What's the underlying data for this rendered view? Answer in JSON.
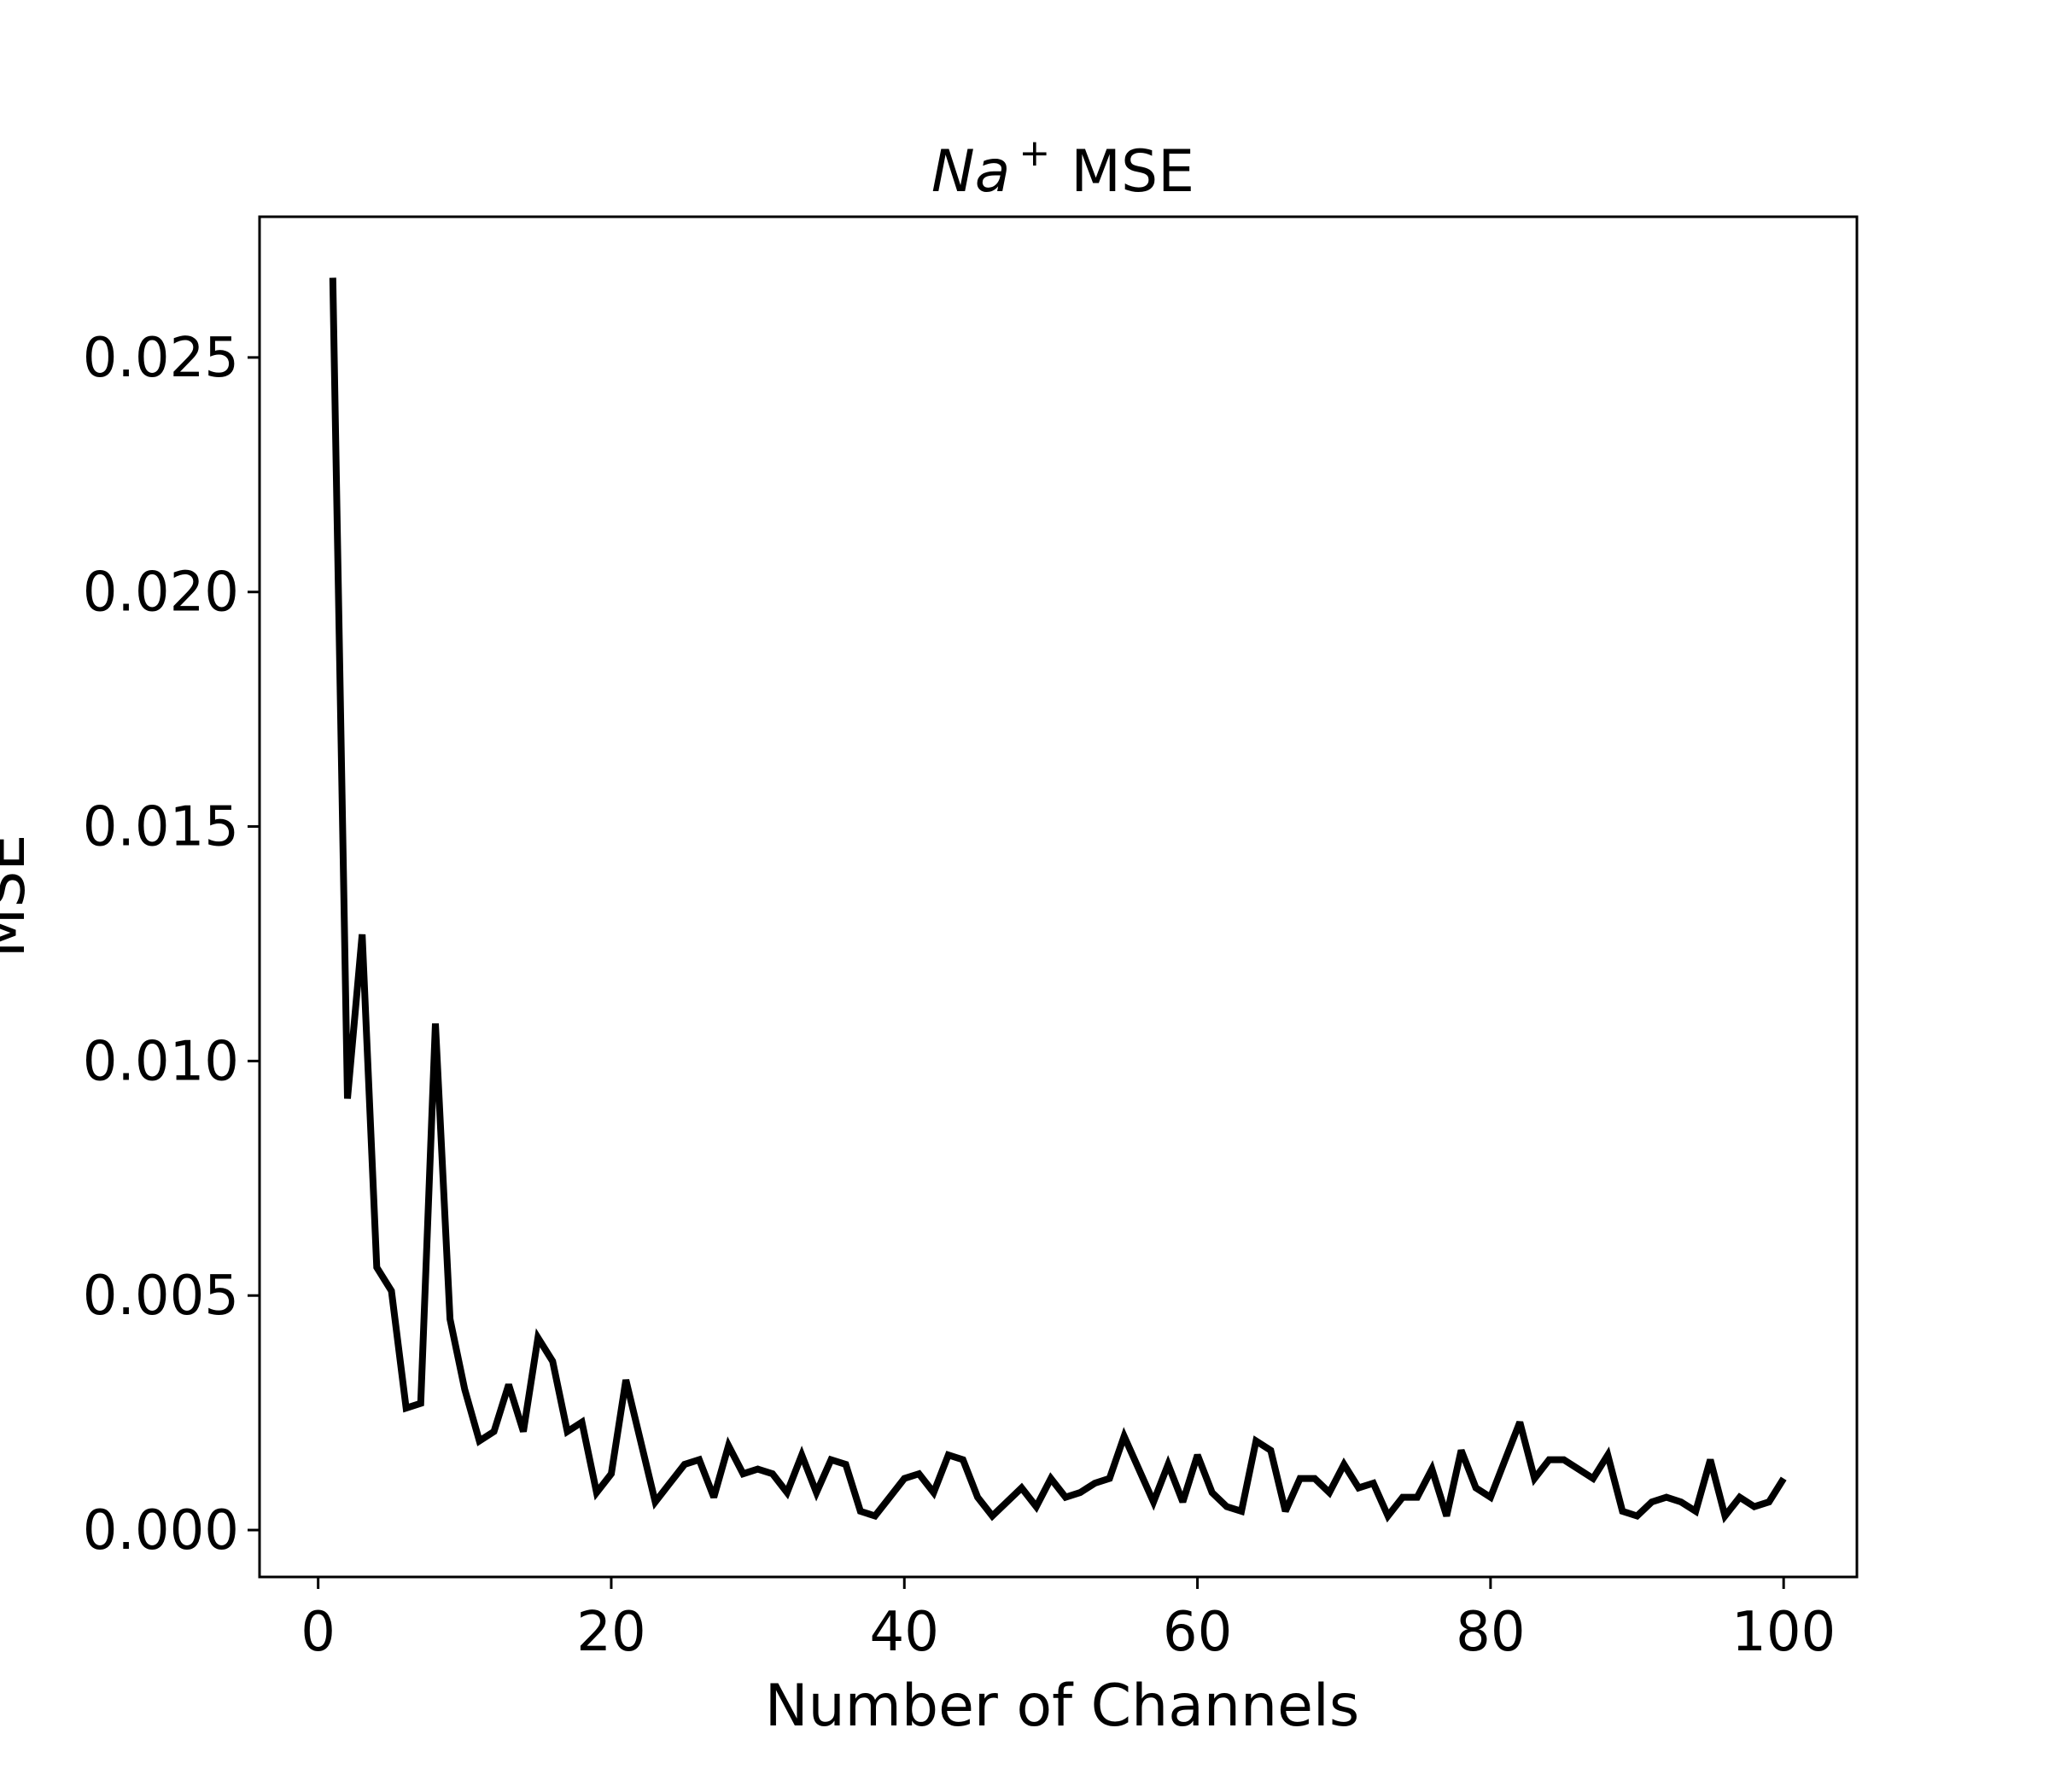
{
  "chart_data": {
    "type": "line",
    "title_prefix": "Na",
    "title_superscript": "+",
    "title_suffix": "MSE",
    "xlabel": "Number of Channels",
    "ylabel": "MSE",
    "xlim": [
      -4,
      105
    ],
    "ylim": [
      -0.001,
      0.028
    ],
    "grid": false,
    "line_color": "#000000",
    "x_ticks": [
      0,
      20,
      40,
      60,
      80,
      100
    ],
    "x_tick_labels": [
      "0",
      "20",
      "40",
      "60",
      "80",
      "100"
    ],
    "y_ticks": [
      0.0,
      0.005,
      0.01,
      0.015,
      0.02,
      0.025
    ],
    "y_tick_labels": [
      "0.000",
      "0.005",
      "0.010",
      "0.015",
      "0.020",
      "0.025"
    ],
    "series": [
      {
        "x": [
          1,
          2,
          3,
          4,
          5,
          6,
          7,
          8,
          9,
          10,
          11,
          12,
          13,
          14,
          15,
          16,
          17,
          18,
          19,
          20,
          21,
          22,
          23,
          24,
          25,
          26,
          27,
          28,
          29,
          30,
          31,
          32,
          33,
          34,
          35,
          36,
          37,
          38,
          39,
          40,
          41,
          42,
          43,
          44,
          45,
          46,
          47,
          48,
          49,
          50,
          51,
          52,
          53,
          54,
          55,
          56,
          57,
          58,
          59,
          60,
          61,
          62,
          63,
          64,
          65,
          66,
          67,
          68,
          69,
          70,
          71,
          72,
          73,
          74,
          75,
          76,
          77,
          78,
          79,
          80,
          81,
          82,
          83,
          84,
          85,
          86,
          87,
          88,
          89,
          90,
          91,
          92,
          93,
          94,
          95,
          96,
          97,
          98,
          99,
          100
        ],
        "values": [
          0.0267,
          0.0092,
          0.0127,
          0.0056,
          0.0051,
          0.0026,
          0.0027,
          0.0108,
          0.0045,
          0.003,
          0.0019,
          0.0021,
          0.0031,
          0.0021,
          0.0041,
          0.0036,
          0.0021,
          0.0023,
          0.0008,
          0.0012,
          0.0032,
          0.0019,
          0.0006,
          0.001,
          0.0014,
          0.0015,
          0.0007,
          0.0018,
          0.0012,
          0.0013,
          0.0012,
          0.0008,
          0.0016,
          0.0008,
          0.0015,
          0.0014,
          0.0004,
          0.0003,
          0.0007,
          0.0011,
          0.0012,
          0.0008,
          0.0016,
          0.0015,
          0.0007,
          0.0003,
          0.0006,
          0.0009,
          0.0005,
          0.0011,
          0.0007,
          0.0008,
          0.001,
          0.0011,
          0.002,
          0.0013,
          0.0006,
          0.0014,
          0.0006,
          0.0016,
          0.0008,
          0.0005,
          0.0004,
          0.0019,
          0.0017,
          0.0004,
          0.0011,
          0.0011,
          0.0008,
          0.0014,
          0.0009,
          0.001,
          0.0003,
          0.0007,
          0.0007,
          0.0013,
          0.0003,
          0.0017,
          0.0009,
          0.0007,
          0.0015,
          0.0023,
          0.0011,
          0.0015,
          0.0015,
          0.0013,
          0.0011,
          0.0016,
          0.0004,
          0.0003,
          0.0006,
          0.0007,
          0.0006,
          0.0004,
          0.0015,
          0.0003,
          0.0007,
          0.0005,
          0.0006,
          0.0011
        ]
      }
    ]
  }
}
